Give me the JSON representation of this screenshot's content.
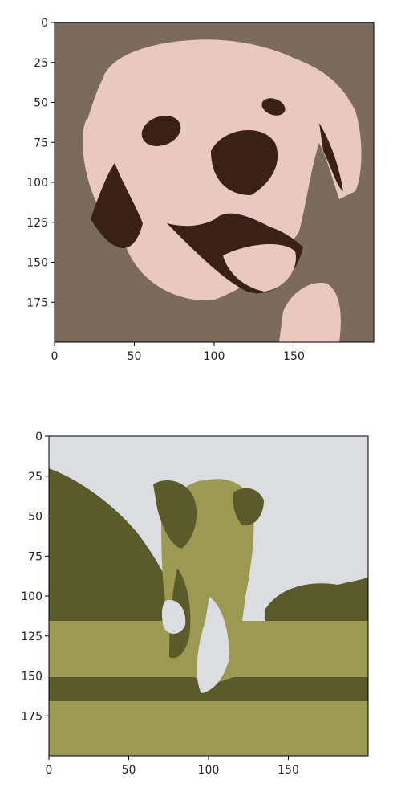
{
  "chart_data": [
    {
      "type": "image",
      "title": "",
      "xlabel": "",
      "ylabel": "",
      "xlim": [
        0,
        200
      ],
      "ylim": [
        200,
        0
      ],
      "x_ticks": [
        0,
        50,
        100,
        150
      ],
      "y_ticks": [
        0,
        25,
        50,
        75,
        100,
        125,
        150,
        175
      ],
      "palette": {
        "background": "#7b6a5e",
        "light": "#e8c8c0",
        "dark": "#3a2118"
      },
      "grid": false,
      "legend": "none"
    },
    {
      "type": "image",
      "title": "",
      "xlabel": "",
      "ylabel": "",
      "xlim": [
        0,
        200
      ],
      "ylim": [
        200,
        0
      ],
      "x_ticks": [
        0,
        50,
        100,
        150
      ],
      "y_ticks": [
        0,
        25,
        50,
        75,
        100,
        125,
        150,
        175
      ],
      "palette": {
        "sky": "#dcdde0",
        "dark": "#5a5a2a",
        "mid": "#9c9a52"
      },
      "grid": false,
      "legend": "none"
    }
  ]
}
